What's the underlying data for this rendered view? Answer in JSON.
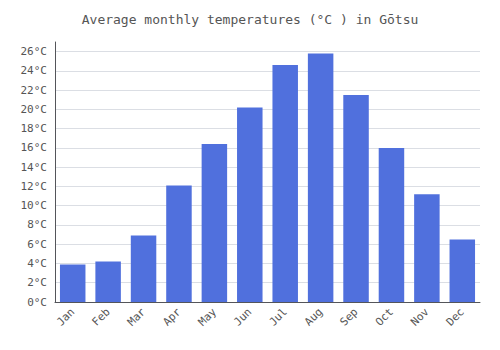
{
  "chart_data": {
    "type": "bar",
    "title": "Average monthly temperatures (°C ) in Gōtsu",
    "categories": [
      "Jan",
      "Feb",
      "Mar",
      "Apr",
      "May",
      "Jun",
      "Jul",
      "Aug",
      "Sep",
      "Oct",
      "Nov",
      "Dec"
    ],
    "values": [
      3.9,
      4.2,
      6.9,
      12.1,
      16.4,
      20.2,
      24.6,
      25.8,
      21.5,
      16.0,
      11.2,
      6.5
    ],
    "ylim": [
      0,
      27
    ],
    "yticks": [
      {
        "value": 0,
        "label": "0°C"
      },
      {
        "value": 2,
        "label": "2°C"
      },
      {
        "value": 4,
        "label": "4°C"
      },
      {
        "value": 6,
        "label": "6°C"
      },
      {
        "value": 8,
        "label": "8°C"
      },
      {
        "value": 10,
        "label": "10°C"
      },
      {
        "value": 12,
        "label": "12°C"
      },
      {
        "value": 14,
        "label": "14°C"
      },
      {
        "value": 16,
        "label": "16°C"
      },
      {
        "value": 18,
        "label": "18°C"
      },
      {
        "value": 20,
        "label": "20°C"
      },
      {
        "value": 22,
        "label": "22°C"
      },
      {
        "value": 24,
        "label": "24°C"
      },
      {
        "value": 26,
        "label": "26°C"
      }
    ],
    "grid": true
  }
}
